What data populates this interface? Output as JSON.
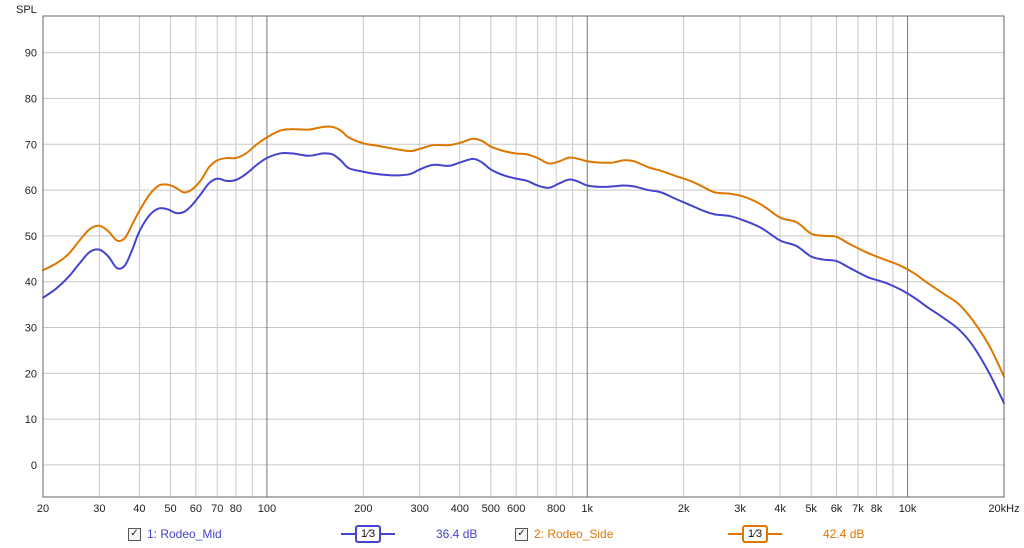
{
  "chart_data": {
    "type": "line",
    "ylabel": "SPL",
    "xlabel": "",
    "x_scale": "log",
    "xlim": [
      20,
      20000
    ],
    "ylim": [
      -7,
      98
    ],
    "grid": true,
    "y_ticks": [
      0,
      10,
      20,
      30,
      40,
      50,
      60,
      70,
      80,
      90
    ],
    "y_tick_labels": [
      "0",
      "10",
      "20",
      "30",
      "40",
      "50",
      "60",
      "70",
      "80",
      "90"
    ],
    "x_ticks": [
      20,
      30,
      40,
      50,
      60,
      70,
      80,
      100,
      200,
      300,
      400,
      500,
      600,
      800,
      1000,
      2000,
      3000,
      4000,
      5000,
      6000,
      7000,
      8000,
      10000,
      20000
    ],
    "x_tick_labels": [
      "20",
      "30",
      "40",
      "50",
      "60",
      "70",
      "80",
      "100",
      "200",
      "300",
      "400",
      "500",
      "600",
      "800",
      "1k",
      "2k",
      "3k",
      "4k",
      "5k",
      "6k",
      "7k",
      "8k",
      "10k",
      "20kHz"
    ],
    "series": [
      {
        "name": "1: Rodeo_Mid",
        "color": "#4444cc",
        "points": [
          [
            20,
            36.5
          ],
          [
            22,
            38.5
          ],
          [
            24,
            41
          ],
          [
            26,
            44
          ],
          [
            28,
            46.5
          ],
          [
            30,
            47
          ],
          [
            32,
            45.5
          ],
          [
            34,
            43
          ],
          [
            36,
            43.5
          ],
          [
            38,
            47
          ],
          [
            40,
            51
          ],
          [
            43,
            54.5
          ],
          [
            46,
            56
          ],
          [
            49,
            55.8
          ],
          [
            52,
            55
          ],
          [
            55,
            55.2
          ],
          [
            58,
            56.5
          ],
          [
            62,
            59
          ],
          [
            66,
            61.5
          ],
          [
            70,
            62.5
          ],
          [
            75,
            62
          ],
          [
            80,
            62.2
          ],
          [
            86,
            63.5
          ],
          [
            93,
            65.5
          ],
          [
            100,
            67
          ],
          [
            110,
            68
          ],
          [
            120,
            68
          ],
          [
            135,
            67.5
          ],
          [
            150,
            68
          ],
          [
            160,
            67.8
          ],
          [
            170,
            66.5
          ],
          [
            180,
            64.8
          ],
          [
            200,
            64
          ],
          [
            220,
            63.5
          ],
          [
            250,
            63.2
          ],
          [
            280,
            63.5
          ],
          [
            300,
            64.5
          ],
          [
            330,
            65.5
          ],
          [
            370,
            65.3
          ],
          [
            400,
            66
          ],
          [
            440,
            66.8
          ],
          [
            470,
            66
          ],
          [
            500,
            64.5
          ],
          [
            550,
            63.2
          ],
          [
            600,
            62.5
          ],
          [
            650,
            62
          ],
          [
            700,
            61
          ],
          [
            760,
            60.5
          ],
          [
            820,
            61.5
          ],
          [
            880,
            62.3
          ],
          [
            940,
            61.8
          ],
          [
            1000,
            61
          ],
          [
            1100,
            60.7
          ],
          [
            1200,
            60.8
          ],
          [
            1300,
            61
          ],
          [
            1400,
            60.8
          ],
          [
            1550,
            60
          ],
          [
            1700,
            59.5
          ],
          [
            1900,
            58
          ],
          [
            2100,
            56.7
          ],
          [
            2300,
            55.5
          ],
          [
            2500,
            54.7
          ],
          [
            2800,
            54.3
          ],
          [
            3100,
            53.3
          ],
          [
            3500,
            51.7
          ],
          [
            4000,
            49
          ],
          [
            4500,
            47.8
          ],
          [
            5000,
            45.5
          ],
          [
            5500,
            44.8
          ],
          [
            6000,
            44.5
          ],
          [
            6600,
            43
          ],
          [
            7500,
            41
          ],
          [
            8500,
            39.8
          ],
          [
            9500,
            38.3
          ],
          [
            10500,
            36.5
          ],
          [
            11500,
            34.5
          ],
          [
            13000,
            32
          ],
          [
            14500,
            29.5
          ],
          [
            16000,
            26
          ],
          [
            18000,
            20
          ],
          [
            20000,
            13.5
          ]
        ],
        "smoothing_label": "1/3",
        "level": "36.4 dB"
      },
      {
        "name": "2: Rodeo_Side",
        "color": "#dd7700",
        "points": [
          [
            20,
            42.5
          ],
          [
            22,
            44
          ],
          [
            24,
            46
          ],
          [
            26,
            49
          ],
          [
            28,
            51.5
          ],
          [
            30,
            52.2
          ],
          [
            32,
            51
          ],
          [
            34,
            49
          ],
          [
            36,
            49.5
          ],
          [
            38,
            52.5
          ],
          [
            40,
            55.5
          ],
          [
            43,
            59
          ],
          [
            46,
            61
          ],
          [
            49,
            61.2
          ],
          [
            52,
            60.5
          ],
          [
            55,
            59.5
          ],
          [
            58,
            60
          ],
          [
            62,
            62
          ],
          [
            66,
            65
          ],
          [
            70,
            66.5
          ],
          [
            75,
            67
          ],
          [
            80,
            67
          ],
          [
            86,
            68
          ],
          [
            93,
            70
          ],
          [
            100,
            71.5
          ],
          [
            110,
            73
          ],
          [
            120,
            73.3
          ],
          [
            135,
            73.2
          ],
          [
            150,
            73.8
          ],
          [
            160,
            73.8
          ],
          [
            170,
            73
          ],
          [
            180,
            71.5
          ],
          [
            200,
            70.2
          ],
          [
            220,
            69.7
          ],
          [
            250,
            69
          ],
          [
            280,
            68.5
          ],
          [
            300,
            69
          ],
          [
            330,
            69.8
          ],
          [
            370,
            69.8
          ],
          [
            400,
            70.3
          ],
          [
            440,
            71.2
          ],
          [
            470,
            70.7
          ],
          [
            500,
            69.5
          ],
          [
            550,
            68.5
          ],
          [
            600,
            68
          ],
          [
            650,
            67.8
          ],
          [
            700,
            67
          ],
          [
            760,
            65.8
          ],
          [
            820,
            66.3
          ],
          [
            880,
            67.1
          ],
          [
            940,
            66.8
          ],
          [
            1000,
            66.3
          ],
          [
            1100,
            66
          ],
          [
            1200,
            66
          ],
          [
            1300,
            66.5
          ],
          [
            1400,
            66.3
          ],
          [
            1550,
            65
          ],
          [
            1700,
            64.2
          ],
          [
            1900,
            63
          ],
          [
            2100,
            62
          ],
          [
            2300,
            60.7
          ],
          [
            2500,
            59.5
          ],
          [
            2800,
            59.2
          ],
          [
            3100,
            58.5
          ],
          [
            3500,
            56.8
          ],
          [
            4000,
            54
          ],
          [
            4500,
            53
          ],
          [
            5000,
            50.5
          ],
          [
            5500,
            50
          ],
          [
            6000,
            49.8
          ],
          [
            6600,
            48.2
          ],
          [
            7500,
            46.3
          ],
          [
            8500,
            44.8
          ],
          [
            9500,
            43.5
          ],
          [
            10500,
            41.8
          ],
          [
            11500,
            39.8
          ],
          [
            13000,
            37.3
          ],
          [
            14500,
            35
          ],
          [
            16000,
            31.5
          ],
          [
            18000,
            26
          ],
          [
            20000,
            19.3
          ]
        ],
        "smoothing_label": "1/3",
        "level": "42.4 dB"
      }
    ]
  },
  "legend": {
    "series1": {
      "checkbox": "✓",
      "label": "1: Rodeo_Mid",
      "smoothing": "1⁄3",
      "level": "36.4 dB"
    },
    "series2": {
      "checkbox": "✓",
      "label": "2: Rodeo_Side",
      "smoothing": "1⁄3",
      "level": "42.4 dB"
    }
  },
  "colors": {
    "series1": "#4444cc",
    "series2": "#dd7700",
    "plot_border": "#666666",
    "grid_minor": "#c8c8c8",
    "grid_major": "#777777"
  }
}
